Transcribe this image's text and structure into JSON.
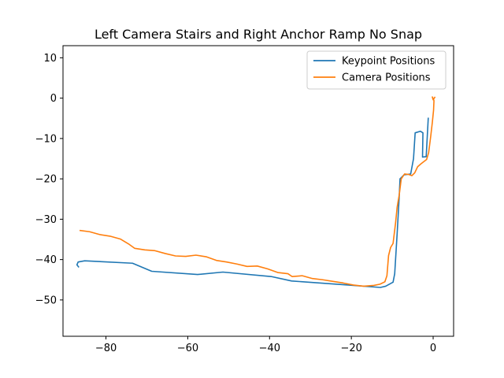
{
  "chart_data": {
    "type": "line",
    "title": "Left Camera Stairs and Right Anchor Ramp No Snap",
    "xlabel": "",
    "ylabel": "",
    "xlim": [
      -90.5,
      5
    ],
    "ylim": [
      -59,
      13
    ],
    "xticks": [
      -80,
      -60,
      -40,
      -20,
      0
    ],
    "xtick_labels": [
      "−80",
      "−60",
      "−40",
      "−20",
      "0"
    ],
    "yticks": [
      10,
      0,
      -10,
      -20,
      -30,
      -40,
      -50
    ],
    "ytick_labels": [
      "10",
      "0",
      "−10",
      "−20",
      "−30",
      "−40",
      "−50"
    ],
    "grid": false,
    "legend_position": "top-right",
    "series": [
      {
        "name": "Keypoint Positions",
        "color": "#1f77b4",
        "points": [
          [
            -86.7,
            -41.8
          ],
          [
            -87.1,
            -41.3
          ],
          [
            -86.8,
            -40.6
          ],
          [
            -85.2,
            -40.3
          ],
          [
            -73.5,
            -40.9
          ],
          [
            -68.8,
            -42.9
          ],
          [
            -57.6,
            -43.7
          ],
          [
            -51.4,
            -43.1
          ],
          [
            -39.6,
            -44.2
          ],
          [
            -34.6,
            -45.3
          ],
          [
            -20.8,
            -46.3
          ],
          [
            -12.9,
            -46.9
          ],
          [
            -11.6,
            -46.6
          ],
          [
            -9.8,
            -45.6
          ],
          [
            -9.4,
            -43.5
          ],
          [
            -8.8,
            -33.5
          ],
          [
            -8.3,
            -24.5
          ],
          [
            -8.1,
            -20.0
          ],
          [
            -7.1,
            -19.0
          ],
          [
            -5.5,
            -18.8
          ],
          [
            -4.8,
            -15.0
          ],
          [
            -4.4,
            -8.6
          ],
          [
            -3.1,
            -8.2
          ],
          [
            -2.5,
            -8.6
          ],
          [
            -2.6,
            -14.6
          ],
          [
            -1.7,
            -14.5
          ],
          [
            -1.2,
            -5.0
          ]
        ]
      },
      {
        "name": "Camera Positions",
        "color": "#ff7f0e",
        "points": [
          [
            -86.3,
            -32.8
          ],
          [
            -84.0,
            -33.1
          ],
          [
            -81.5,
            -33.8
          ],
          [
            -79.0,
            -34.2
          ],
          [
            -76.5,
            -34.9
          ],
          [
            -74.5,
            -36.1
          ],
          [
            -73.0,
            -37.2
          ],
          [
            -70.5,
            -37.6
          ],
          [
            -68.0,
            -37.8
          ],
          [
            -65.5,
            -38.5
          ],
          [
            -63.0,
            -39.1
          ],
          [
            -60.5,
            -39.2
          ],
          [
            -58.0,
            -38.9
          ],
          [
            -55.5,
            -39.3
          ],
          [
            -53.0,
            -40.2
          ],
          [
            -50.5,
            -40.6
          ],
          [
            -48.0,
            -41.1
          ],
          [
            -45.5,
            -41.7
          ],
          [
            -43.0,
            -41.6
          ],
          [
            -40.5,
            -42.3
          ],
          [
            -38.0,
            -43.2
          ],
          [
            -35.5,
            -43.5
          ],
          [
            -34.5,
            -44.2
          ],
          [
            -32.0,
            -44.0
          ],
          [
            -29.5,
            -44.7
          ],
          [
            -27.0,
            -45.0
          ],
          [
            -24.5,
            -45.4
          ],
          [
            -22.0,
            -45.8
          ],
          [
            -19.5,
            -46.3
          ],
          [
            -17.0,
            -46.6
          ],
          [
            -14.5,
            -46.4
          ],
          [
            -13.0,
            -46.1
          ],
          [
            -11.8,
            -45.5
          ],
          [
            -11.3,
            -44.0
          ],
          [
            -10.9,
            -39.0
          ],
          [
            -10.4,
            -37.0
          ],
          [
            -9.8,
            -36.0
          ],
          [
            -9.2,
            -31.0
          ],
          [
            -8.8,
            -27.0
          ],
          [
            -8.3,
            -24.0
          ],
          [
            -7.8,
            -20.0
          ],
          [
            -7.0,
            -18.8
          ],
          [
            -6.0,
            -18.9
          ],
          [
            -5.2,
            -19.2
          ],
          [
            -4.5,
            -18.5
          ],
          [
            -3.8,
            -17.0
          ],
          [
            -3.0,
            -16.3
          ],
          [
            -1.6,
            -15.2
          ],
          [
            -1.1,
            -13.5
          ],
          [
            -0.6,
            -9.5
          ],
          [
            -0.2,
            -6.0
          ],
          [
            0.1,
            -3.0
          ],
          [
            0.2,
            -0.6
          ],
          [
            -0.2,
            0.3
          ],
          [
            0.0,
            -0.4
          ],
          [
            0.4,
            0.2
          ]
        ]
      }
    ]
  }
}
